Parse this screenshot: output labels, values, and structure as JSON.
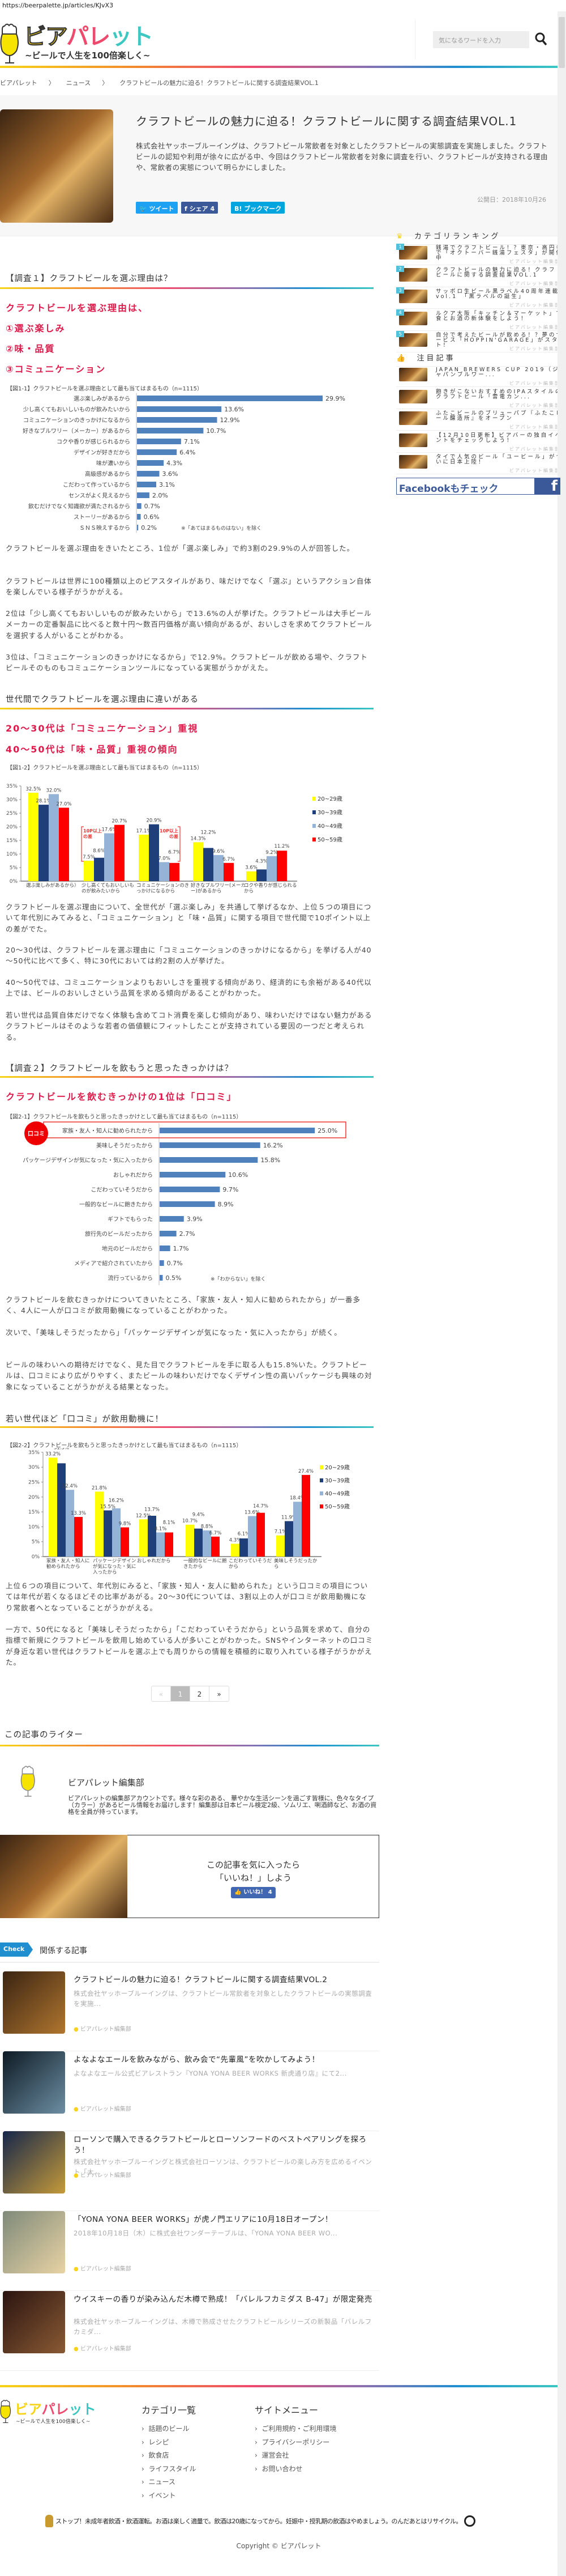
{
  "browser": {
    "url": "https://beerpalette.jp/articles/KJvX3"
  },
  "header": {
    "logo_text_1": "ビア",
    "logo_text_2": "パレ",
    "logo_text_3": "ット",
    "tagline": "~ビールで人生を100倍楽しく~",
    "search_placeholder": "気になるワードを入力",
    "search_icon": "magnifier-icon"
  },
  "breadcrumb": [
    "ビアパレット",
    "〉",
    "ニュース",
    "〉",
    "クラフトビールの魅力に迫る！クラフトビールに関する調査結果VOL.1"
  ],
  "article": {
    "title": "クラフトビールの魅力に迫る！クラフトビールに関する調査結果VOL.1",
    "lead": "株式会社ヤッホーブルーイングは、クラフトビール常飲者を対象としたクラフトビールの実態調査を実施しました。クラフトビールの認知や利用が徐々に広がる中、今回はクラフトビール常飲者を対象に調査を行い、クラフトビールが支持される理由や、常飲者の実態について明らかにしました。",
    "published": "公開日：2018年10月26",
    "share": {
      "tweet": "ツイート",
      "facebook": "シェア 4",
      "hatena": "B! ブックマーク"
    },
    "colors": {
      "twitter": "#1da1f2",
      "facebook": "#3b5998",
      "hatena": "#00a4de",
      "accent_red": "#dd1a4a"
    }
  },
  "survey1": {
    "heading": "【調査１】クラフトビールを選ぶ理由は？",
    "highlights": [
      "クラフトビールを選ぶ理由は、",
      "①選ぶ楽しみ",
      "②味・品質",
      "③コミュニケーション"
    ],
    "fig1_caption": "【図1-1】クラフトビールを選ぶ理由として最も当てはまるもの（n=1115）",
    "fig1_note": "※「あてはまるものはない」を除く",
    "paragraphs": [
      "クラフトビールを選ぶ理由をきいたところ、1位が「選ぶ楽しみ」で約3割の29.9%の人が回答した。",
      "クラフトビールは世界に100種類以上のビアスタイルがあり、味だけでなく「選ぶ」というアクション自体を楽しんでいる様子がうかがえる。",
      "2位は「少し高くてもおいしいものが飲みたいから」で13.6%の人が挙げた。クラフトビールは大手ビールメーカーの定番製品に比べると数十円～数百円価格が高い傾向があるが、おいしさを求めてクラフトビールを選択する人がいることがわかる。",
      "3位は、「コミュニケーションのきっかけになるから」で12.9%。クラフトビールが飲める場や、クラフトビールそのものもコミュニケーションツールになっている実態がうかがえた。"
    ],
    "sub_heading": "世代間でクラフトビールを選ぶ理由に違いがある",
    "sub_highlights": [
      "20～30代は「コミュニケーション」重視",
      "40～50代は「味・品質」重視の傾向"
    ],
    "fig2_caption": "【図1-2】クラフトビールを選ぶ理由として最も当てはまるもの（n=1115）",
    "fig2_annotation": "10P以上の差",
    "paragraphs2": [
      "クラフトビールを選ぶ理由について、全世代が「選ぶ楽しみ」を共通して挙げるなか、上位５つの項目について年代別にみてみると、「コミュニケーション」と「味・品質」に関する項目で世代間で10ポイント以上の差がでた。",
      "20～30代は、クラフトビールを選ぶ理由に「コミュニケーションのきっかけになるから」を挙げる人が40～50代に比べて多く、特に30代においては約2割の人が挙げた。",
      "40～50代では、コミュニケーションよりもおいしさを重視する傾向があり、経済的にも余裕がある40代以上では、ビールのおいしさという品質を求める傾向があることがわかった。",
      "若い世代は品質自体だけでなく体験も含めてコト消費を楽しむ傾向があり、味わいだけではない魅力があるクラフトビールはそのような若者の価値観にフィットしたことが支持されている要因の一つだと考えられる。"
    ]
  },
  "survey2": {
    "heading": "【調査２】クラフトビールを飲もうと思ったきっかけは？",
    "highlight": "クラフトビールを飲むきっかけの1位は「口コミ」",
    "fig1_caption": "【図2-1】クラフトビールを飲もうと思ったきっかけとして最も当てはまるもの（n=1115）",
    "fig1_badge": "口コミ",
    "fig1_note": "※「わからない」を除く",
    "paragraphs": [
      "クラフトビールを飲むきっかけについてきいたところ、「家族・友人・知人に勧められたから」が一番多く、4人に一人が口コミが飲用動機になっていることがわかった。",
      "次いで、「美味しそうだったから」「パッケージデザインが気になった・気に入ったから」が続く。",
      "ビールの味わいへの期待だけでなく、見た目でクラフトビールを手に取る人も15.8%いた。クラフトビールは、口コミにより広がりやすく、またビールの味わいだけでなくデザイン性の高いパッケージも興味の対象になっていることがうかがえる結果となった。"
    ],
    "sub_heading": "若い世代ほど「口コミ」が飲用動機に！",
    "fig2_caption": "【図2-2】クラフトビールを飲もうと思ったきっかけとして最も当てはまるもの（n=1115）",
    "paragraphs2": [
      "上位６つの項目について、年代別にみると、「家族・知人・友人に勧められた」という口コミの項目については年代が若くなるほどその比率があがる。20～30代については、3割以上の人が口コミが飲用動機になり常飲者へとなっていることがうかがえる。",
      "一方で、50代になると「美味しそうだったから」「こだわっていそうだから」という品質を求めて、自分の指標で新規にクラフトビールを飲用し始めている人が多いことがわかった。SNSやインターネットの口コミが身近な若い世代はクラフトビールを選ぶ上でも周りからの情報を積極的に取り入れている様子がうかがえた。"
    ]
  },
  "chart_data": [
    {
      "type": "bar",
      "orientation": "horizontal",
      "title": "【図1-1】クラフトビールを選ぶ理由として最も当てはまるもの（n=1115）",
      "categories": [
        "選ぶ楽しみがあるから",
        "少し高くてもおいしいものが飲みたいから",
        "コミュニケーションのきっかけになるから",
        "好きなブルワリー（メーカー）があるから",
        "コクや香りが感じられるから",
        "デザインが好きだから",
        "味が濃いから",
        "高級感があるから",
        "こだわって作っているから",
        "センスがよく見えるから",
        "飲むだけでなく知識欲が満たされるから",
        "ストーリーがあるから",
        "ＳＮＳ映えするから"
      ],
      "values": [
        29.9,
        13.6,
        12.9,
        10.7,
        7.1,
        6.4,
        4.3,
        3.6,
        3.1,
        2.0,
        0.7,
        0.6,
        0.2
      ],
      "value_labels": [
        "29.9%",
        "13.6%",
        "12.9%",
        "10.7%",
        "7.1%",
        "6.4%",
        "4.3%",
        "3.6%",
        "3.1%",
        "2.0%",
        "0.7%",
        "0.6%",
        "0.2%"
      ],
      "unit": "%",
      "color": "#4f81bd",
      "grid": false
    },
    {
      "type": "bar",
      "orientation": "vertical",
      "title": "【図1-2】クラフトビールを選ぶ理由として最も当てはまるもの（n=1115）",
      "categories": [
        "選ぶ楽しみがあるから）",
        "少し高くてもおいしいものが飲みたいから",
        "コミュニケーションのきっかけになるから",
        "好きなブルワリー(メーカー)があるから",
        "コクや香りが感じられるから"
      ],
      "series": [
        {
          "name": "20~29歳",
          "color": "#ffff00",
          "values": [
            32.5,
            7.5,
            17.1,
            14.3,
            3.6
          ]
        },
        {
          "name": "30~39歳",
          "color": "#1f3f7a",
          "values": [
            28.1,
            8.6,
            20.9,
            12.2,
            4.3
          ]
        },
        {
          "name": "40~49歳",
          "color": "#95b3d7",
          "values": [
            32.0,
            17.6,
            7.0,
            9.6,
            9.2
          ]
        },
        {
          "name": "50~59歳",
          "color": "#ff0000",
          "values": [
            27.0,
            20.7,
            6.7,
            6.7,
            11.2
          ]
        }
      ],
      "yticks": [
        "0%",
        "5%",
        "10%",
        "15%",
        "20%",
        "25%",
        "30%",
        "35%"
      ],
      "ylim": [
        0,
        35
      ],
      "legend": "right",
      "grid": false,
      "annotations": [
        "10P以上の差",
        "10P以上の差"
      ]
    },
    {
      "type": "bar",
      "orientation": "horizontal",
      "title": "【図2-1】クラフトビールを飲もうと思ったきっかけとして最も当てはまるもの（n=1115）",
      "categories": [
        "家族・友人・知人に勧められたから",
        "美味しそうだったから",
        "パッケージデザインが気になった・気に入ったから",
        "おしゃれだから",
        "こだわっていそうだから",
        "一般的なビールに飽きたから",
        "ギフトでもらった",
        "旅行先のビールだったから",
        "地元のビールだから",
        "メディアで紹介されていたから",
        "流行っているから"
      ],
      "values": [
        25.0,
        16.2,
        15.8,
        10.6,
        9.7,
        8.9,
        3.9,
        2.7,
        1.7,
        0.7,
        0.5
      ],
      "value_labels": [
        "25.0%",
        "16.2%",
        "15.8%",
        "10.6%",
        "9.7%",
        "8.9%",
        "3.9%",
        "2.7%",
        "1.7%",
        "0.7%",
        "0.5%"
      ],
      "unit": "%",
      "color": "#4f81bd",
      "grid": false
    },
    {
      "type": "bar",
      "orientation": "vertical",
      "title": "【図2-2】クラフトビールを飲もうと思ったきっかけとして最も当てはまるもの（n=1115）",
      "categories": [
        "家族・友人・知人に勧められたから",
        "パッケージデザインが気になった・気に入ったから",
        "おしゃれだから",
        "一般的なビールに飽きたから",
        "こだわっていそうだから",
        "美味しそうだったから"
      ],
      "series": [
        {
          "name": "20~29歳",
          "color": "#ffff00",
          "values": [
            33.2,
            21.8,
            12.5,
            10.7,
            4.3,
            7.1
          ]
        },
        {
          "name": "30~39歳",
          "color": "#1f3f7a",
          "values": [
            31.3,
            15.5,
            13.7,
            9.4,
            6.1,
            11.9
          ]
        },
        {
          "name": "40~49歳",
          "color": "#95b3d7",
          "values": [
            22.4,
            16.2,
            8.1,
            8.8,
            13.6,
            18.4
          ]
        },
        {
          "name": "50~59歳",
          "color": "#ff0000",
          "values": [
            13.3,
            9.8,
            8.1,
            6.7,
            14.7,
            27.4
          ]
        }
      ],
      "yticks": [
        "0%",
        "5%",
        "10%",
        "15%",
        "20%",
        "25%",
        "30%",
        "35%"
      ],
      "ylim": [
        0,
        35
      ],
      "legend": "right",
      "grid": false
    }
  ],
  "pagination": {
    "prev": "«",
    "pages": [
      "1",
      "2"
    ],
    "current": "1",
    "next": "»"
  },
  "writer": {
    "heading": "この記事のライター",
    "name": "ビアパレット編集部",
    "bio": "ビアパレットの編集部アカウントです。様々な彩のある、 華やかな生活シーンを過ごす皆様に、色々なタイプ（カラー）があるビール情報をお届けします！編集部は日本ビール検定2級、ソムリエ、唎酒師など、お酒の資格を全員が持っています。"
  },
  "like_box": {
    "line1": "この記事を気に入ったら",
    "line2": "「いいね！」しよう",
    "button": "いいね！ 4"
  },
  "related": {
    "badge": "Check",
    "heading": "関係する記事",
    "items": [
      {
        "title": "クラフトビールの魅力に迫る！クラフトビールに関する調査結果VOL.2",
        "desc": "株式会社ヤッホーブルーイングは、クラフトビール常飲者を対象としたクラフトビールの実態調査を実施...",
        "author": "ビアパレット編集部"
      },
      {
        "title": "よなよなエールを飲みながら、飲み会で“先輩風”を吹かしてみよう！",
        "desc": "よなよなエール公式ビアレストラン『YONA YONA BEER WORKS 新虎通り店』にて2...",
        "author": "ビアパレット編集部"
      },
      {
        "title": "ローソンで購入できるクラフトビールとローソンフードのベストペアリングを探ろう！",
        "desc": "株式会社ヤッホーブルーイングと株式会社ローソンは、クラフトビールの楽しみ方を広めるイベント「大...",
        "author": "ビアパレット編集部"
      },
      {
        "title": "「YONA YONA BEER WORKS」が虎ノ門エリアに10月18日オープン！",
        "desc": "2018年10月18日（木）に株式会社ワンダーテーブルは、「YONA YONA BEER WO...",
        "author": "ビアパレット編集部"
      },
      {
        "title": "ウイスキーの香りが染み込んだ木樽で熟成！「バレルフカミダス B-47」が限定発売",
        "desc": "株式会社ヤッホーブルーイングは、木樽で熟成させたクラフトビールシリーズの新製品「バレルフカミダ...",
        "author": "ビアパレット編集部"
      }
    ]
  },
  "sidebar": {
    "ranking_heading": "カテゴリランキング",
    "ranking": [
      {
        "rank": "1",
        "title": "銭湯でクラフトビール！？東京・高円寺で「オクトーバー銭湯フェスタ」が開催中",
        "author": "ビアパレット編集部"
      },
      {
        "rank": "2",
        "title": "クラフトビールの魅力に迫る！クラフトビールに関する調査結果VOL.1",
        "author": "ビアパレット編集部"
      },
      {
        "rank": "3",
        "title": "サッポロ生ビール黒ラベル40周年連載vol.1　「黒ラベルの誕生」",
        "author": "ビアパレット編集部"
      },
      {
        "rank": "4",
        "title": "ルクア大阪「キッチン＆マーケット」で食とお酒の新体験をしよう！",
        "author": "ビアパレット編集部"
      },
      {
        "rank": "5",
        "title": "自分で考えたビールが飲める！？夢のサービス「HOPPIN'GARAGE」がスタート！",
        "author": "ビアパレット編集部"
      }
    ],
    "featured_heading": "注目記事",
    "featured": [
      {
        "title": "JAPAN BREWERS CUP 2019（ジャパンブルワー...",
        "author": "ビアパレット編集部"
      },
      {
        "title": "飽きがこないおすすめのIPAスタイルのクラフトビール「雷電カン...",
        "author": "ビアパレット編集部"
      },
      {
        "title": "ふたこビールのブリューパブ『ふたこビール醸造所』をオープン",
        "author": "ビアパレット編集部"
      },
      {
        "title": "【12月10日更新】ビアバーの独自イベントをチェックしよう！",
        "author": "ビアパレット編集部"
      },
      {
        "title": "タイで人気のビール「ユービール」がついに日本上陸！",
        "author": "ビアパレット編集部"
      }
    ],
    "facebook_banner": "Facebookもチェック",
    "facebook_glyph": "f"
  },
  "footer": {
    "categories_heading": "カテゴリ一覧",
    "categories": [
      "話題のビール",
      "レシピ",
      "飲食店",
      "ライフスタイル",
      "ニュース",
      "イベント"
    ],
    "site_heading": "サイトメニュー",
    "site_menu": [
      "ご利用規約・ご利用環境",
      "プライバシーポリシー",
      "運営会社",
      "お問い合わせ"
    ],
    "warning": "ストップ！未成年者飲酒・飲酒運転。お酒は楽しく適量で。飲酒は20歳になってから。妊娠中・授乳期の飲酒はやめましょう。のんだあとはリサイクル。",
    "copyright": "Copyright © ビアパレット"
  }
}
